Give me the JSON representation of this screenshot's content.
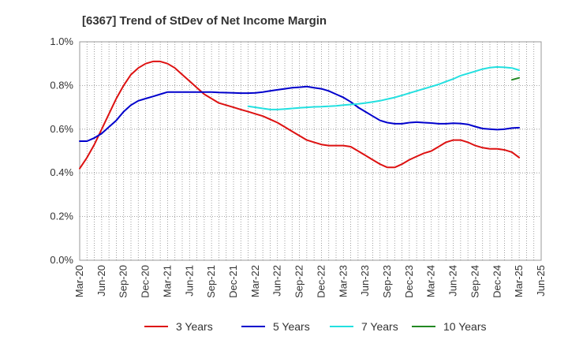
{
  "chart_data": {
    "type": "line",
    "title": "[6367]  Trend of StDev of Net Income Margin",
    "xlabel": "",
    "ylabel": "",
    "ylim": [
      0,
      1.0
    ],
    "y_ticks": [
      "0.0%",
      "0.2%",
      "0.4%",
      "0.6%",
      "0.8%",
      "1.0%"
    ],
    "x_ticks": [
      "Mar-20",
      "Jun-20",
      "Sep-20",
      "Dec-20",
      "Mar-21",
      "Jun-21",
      "Sep-21",
      "Dec-21",
      "Mar-22",
      "Jun-22",
      "Sep-22",
      "Dec-22",
      "Mar-23",
      "Jun-23",
      "Sep-23",
      "Dec-23",
      "Mar-24",
      "Jun-24",
      "Sep-24",
      "Dec-24",
      "Mar-25",
      "Jun-25"
    ],
    "grid": true,
    "legend_position": "bottom",
    "series": [
      {
        "name": "3 Years",
        "color": "#dd1111",
        "x": [
          "Mar-20",
          "Apr-20",
          "May-20",
          "Jun-20",
          "Jul-20",
          "Aug-20",
          "Sep-20",
          "Oct-20",
          "Nov-20",
          "Dec-20",
          "Jan-21",
          "Feb-21",
          "Mar-21",
          "Apr-21",
          "May-21",
          "Jun-21",
          "Jul-21",
          "Aug-21",
          "Sep-21",
          "Oct-21",
          "Nov-21",
          "Dec-21",
          "Jan-22",
          "Feb-22",
          "Mar-22",
          "Apr-22",
          "May-22",
          "Jun-22",
          "Jul-22",
          "Aug-22",
          "Sep-22",
          "Oct-22",
          "Nov-22",
          "Dec-22",
          "Jan-23",
          "Feb-23",
          "Mar-23",
          "Apr-23",
          "May-23",
          "Jun-23",
          "Jul-23",
          "Aug-23",
          "Sep-23",
          "Oct-23",
          "Nov-23",
          "Dec-23",
          "Jan-24",
          "Feb-24",
          "Mar-24",
          "Apr-24",
          "May-24",
          "Jun-24",
          "Jul-24",
          "Aug-24",
          "Sep-24",
          "Oct-24",
          "Nov-24",
          "Dec-24",
          "Jan-25",
          "Feb-25",
          "Mar-25"
        ],
        "values": [
          0.42,
          0.47,
          0.53,
          0.6,
          0.67,
          0.74,
          0.8,
          0.85,
          0.88,
          0.9,
          0.91,
          0.91,
          0.9,
          0.88,
          0.85,
          0.82,
          0.79,
          0.76,
          0.74,
          0.72,
          0.71,
          0.7,
          0.69,
          0.68,
          0.67,
          0.66,
          0.645,
          0.63,
          0.61,
          0.59,
          0.57,
          0.55,
          0.54,
          0.53,
          0.525,
          0.525,
          0.525,
          0.52,
          0.5,
          0.48,
          0.46,
          0.44,
          0.425,
          0.425,
          0.44,
          0.46,
          0.475,
          0.49,
          0.5,
          0.52,
          0.54,
          0.55,
          0.55,
          0.54,
          0.525,
          0.515,
          0.51,
          0.51,
          0.505,
          0.495,
          0.47
        ]
      },
      {
        "name": "5 Years",
        "color": "#0000cc",
        "x": [
          "Mar-20",
          "Apr-20",
          "May-20",
          "Jun-20",
          "Jul-20",
          "Aug-20",
          "Sep-20",
          "Oct-20",
          "Nov-20",
          "Dec-20",
          "Jan-21",
          "Feb-21",
          "Mar-21",
          "Apr-21",
          "May-21",
          "Jun-21",
          "Jul-21",
          "Aug-21",
          "Sep-21",
          "Oct-21",
          "Nov-21",
          "Dec-21",
          "Jan-22",
          "Feb-22",
          "Mar-22",
          "Apr-22",
          "May-22",
          "Jun-22",
          "Jul-22",
          "Aug-22",
          "Sep-22",
          "Oct-22",
          "Nov-22",
          "Dec-22",
          "Jan-23",
          "Feb-23",
          "Mar-23",
          "Apr-23",
          "May-23",
          "Jun-23",
          "Jul-23",
          "Aug-23",
          "Sep-23",
          "Oct-23",
          "Nov-23",
          "Dec-23",
          "Jan-24",
          "Feb-24",
          "Mar-24",
          "Apr-24",
          "May-24",
          "Jun-24",
          "Jul-24",
          "Aug-24",
          "Sep-24",
          "Oct-24",
          "Nov-24",
          "Dec-24",
          "Jan-25",
          "Feb-25",
          "Mar-25"
        ],
        "values": [
          0.545,
          0.545,
          0.56,
          0.58,
          0.61,
          0.64,
          0.68,
          0.71,
          0.73,
          0.74,
          0.75,
          0.76,
          0.77,
          0.77,
          0.77,
          0.77,
          0.77,
          0.77,
          0.77,
          0.768,
          0.767,
          0.766,
          0.765,
          0.765,
          0.766,
          0.77,
          0.775,
          0.78,
          0.785,
          0.79,
          0.792,
          0.795,
          0.79,
          0.785,
          0.775,
          0.76,
          0.745,
          0.725,
          0.7,
          0.68,
          0.66,
          0.64,
          0.63,
          0.625,
          0.625,
          0.63,
          0.632,
          0.63,
          0.628,
          0.625,
          0.625,
          0.627,
          0.626,
          0.622,
          0.612,
          0.603,
          0.6,
          0.598,
          0.6,
          0.605,
          0.607
        ]
      },
      {
        "name": "7 Years",
        "color": "#22e0e0",
        "x": [
          "Feb-22",
          "Mar-22",
          "Apr-22",
          "May-22",
          "Jun-22",
          "Jul-22",
          "Aug-22",
          "Sep-22",
          "Oct-22",
          "Nov-22",
          "Dec-22",
          "Jan-23",
          "Feb-23",
          "Mar-23",
          "Apr-23",
          "May-23",
          "Jun-23",
          "Jul-23",
          "Aug-23",
          "Sep-23",
          "Oct-23",
          "Nov-23",
          "Dec-23",
          "Jan-24",
          "Feb-24",
          "Mar-24",
          "Apr-24",
          "May-24",
          "Jun-24",
          "Jul-24",
          "Aug-24",
          "Sep-24",
          "Oct-24",
          "Nov-24",
          "Dec-24",
          "Jan-25",
          "Feb-25",
          "Mar-25"
        ],
        "values": [
          0.705,
          0.7,
          0.695,
          0.69,
          0.69,
          0.692,
          0.695,
          0.698,
          0.7,
          0.702,
          0.703,
          0.705,
          0.707,
          0.71,
          0.713,
          0.716,
          0.72,
          0.725,
          0.73,
          0.738,
          0.745,
          0.755,
          0.765,
          0.775,
          0.785,
          0.795,
          0.805,
          0.818,
          0.83,
          0.845,
          0.855,
          0.865,
          0.875,
          0.882,
          0.885,
          0.883,
          0.88,
          0.87
        ]
      },
      {
        "name": "10 Years",
        "color": "#228822",
        "x": [
          "Feb-25",
          "Mar-25"
        ],
        "values": [
          0.826,
          0.835
        ]
      }
    ]
  }
}
